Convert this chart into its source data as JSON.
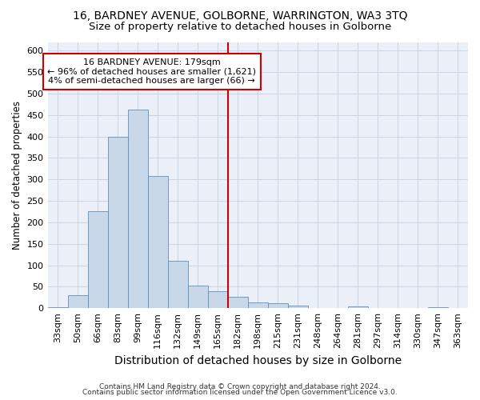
{
  "title": "16, BARDNEY AVENUE, GOLBORNE, WARRINGTON, WA3 3TQ",
  "subtitle": "Size of property relative to detached houses in Golborne",
  "xlabel": "Distribution of detached houses by size in Golborne",
  "ylabel": "Number of detached properties",
  "footnote1": "Contains HM Land Registry data © Crown copyright and database right 2024.",
  "footnote2": "Contains public sector information licensed under the Open Government Licence v3.0.",
  "bin_labels": [
    "33sqm",
    "50sqm",
    "66sqm",
    "83sqm",
    "99sqm",
    "116sqm",
    "132sqm",
    "149sqm",
    "165sqm",
    "182sqm",
    "198sqm",
    "215sqm",
    "231sqm",
    "248sqm",
    "264sqm",
    "281sqm",
    "297sqm",
    "314sqm",
    "330sqm",
    "347sqm",
    "363sqm"
  ],
  "bar_values": [
    3,
    30,
    225,
    400,
    463,
    308,
    110,
    52,
    40,
    26,
    14,
    12,
    5,
    0,
    0,
    4,
    0,
    0,
    0,
    3,
    0
  ],
  "bar_color": "#c8d8e8",
  "bar_edge_color": "#6090b8",
  "vline_index": 9,
  "vline_color": "#cc0000",
  "annotation_line1": "16 BARDNEY AVENUE: 179sqm",
  "annotation_line2": "← 96% of detached houses are smaller (1,621)",
  "annotation_line3": "4% of semi-detached houses are larger (66) →",
  "annotation_box_color": "#cc0000",
  "ylim": [
    0,
    620
  ],
  "yticks": [
    0,
    50,
    100,
    150,
    200,
    250,
    300,
    350,
    400,
    450,
    500,
    550,
    600
  ],
  "grid_color": "#c8d4e4",
  "bg_color": "#eaeff8",
  "title_fontsize": 10,
  "subtitle_fontsize": 9.5,
  "xlabel_fontsize": 10,
  "ylabel_fontsize": 8.5,
  "tick_fontsize": 8,
  "footnote_fontsize": 6.5
}
